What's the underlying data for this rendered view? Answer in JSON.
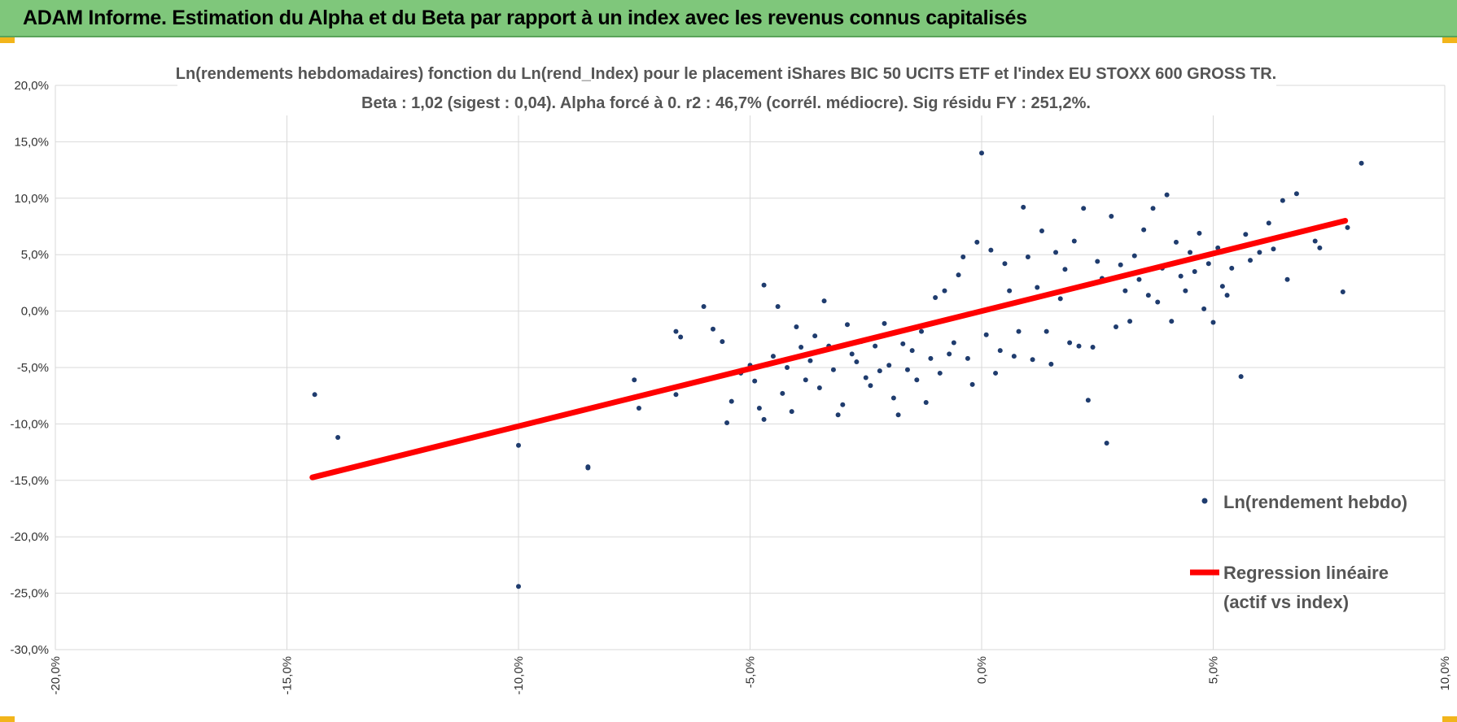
{
  "banner": {
    "title": "ADAM Informe. Estimation du Alpha et du Beta par rapport à un index avec les revenus connus capitalisés",
    "background": "#7fc77b",
    "accent": "#f2b51b"
  },
  "chart_data": {
    "type": "scatter",
    "title_line1": "Ln(rendements hebdomadaires) fonction du Ln(rend_Index) pour le placement iShares BIC 50 UCITS ETF  et l'index EU STOXX 600 GROSS TR.",
    "title_line2": "Beta : 1,02 (sigest : 0,04). Alpha forcé à 0. r2 : 46,7% (corrél. médiocre). Sig résidu FY : 251,2%.",
    "xlim": [
      -0.2,
      0.1
    ],
    "ylim": [
      -0.3,
      0.2
    ],
    "x_ticks": [
      -0.2,
      -0.15,
      -0.1,
      -0.05,
      0.0,
      0.05,
      0.1
    ],
    "x_tick_labels": [
      "-20,0%",
      "-15,0%",
      "-10,0%",
      "-5,0%",
      "0,0%",
      "5,0%",
      "10,0%"
    ],
    "y_ticks": [
      0.2,
      0.15,
      0.1,
      0.05,
      0.0,
      -0.05,
      -0.1,
      -0.15,
      -0.2,
      -0.25,
      -0.3
    ],
    "y_tick_labels": [
      "20,0%",
      "15,0%",
      "10,0%",
      "5,0%",
      "0,0%",
      "-5,0%",
      "-10,0%",
      "-15,0%",
      "-20,0%",
      "-25,0%",
      "-30,0%"
    ],
    "grid": true,
    "legend_position": "right",
    "series": [
      {
        "name": "Ln(rendement hebdo)",
        "kind": "scatter",
        "color": "#1f3c6e",
        "points": [
          [
            -0.144,
            -0.074
          ],
          [
            -0.139,
            -0.112
          ],
          [
            -0.1,
            -0.119
          ],
          [
            -0.1,
            -0.244
          ],
          [
            -0.085,
            -0.138
          ],
          [
            -0.085,
            -0.139
          ],
          [
            -0.075,
            -0.061
          ],
          [
            -0.074,
            -0.086
          ],
          [
            -0.066,
            -0.074
          ],
          [
            -0.066,
            -0.018
          ],
          [
            -0.065,
            -0.023
          ],
          [
            -0.06,
            0.004
          ],
          [
            -0.058,
            -0.016
          ],
          [
            -0.056,
            -0.027
          ],
          [
            -0.055,
            -0.099
          ],
          [
            -0.054,
            -0.08
          ],
          [
            -0.052,
            -0.055
          ],
          [
            -0.05,
            -0.048
          ],
          [
            -0.049,
            -0.062
          ],
          [
            -0.048,
            -0.086
          ],
          [
            -0.047,
            -0.096
          ],
          [
            -0.047,
            0.023
          ],
          [
            -0.045,
            -0.04
          ],
          [
            -0.044,
            0.004
          ],
          [
            -0.043,
            -0.073
          ],
          [
            -0.042,
            -0.05
          ],
          [
            -0.041,
            -0.089
          ],
          [
            -0.04,
            -0.014
          ],
          [
            -0.039,
            -0.032
          ],
          [
            -0.038,
            -0.061
          ],
          [
            -0.037,
            -0.044
          ],
          [
            -0.036,
            -0.022
          ],
          [
            -0.035,
            -0.068
          ],
          [
            -0.034,
            0.009
          ],
          [
            -0.033,
            -0.031
          ],
          [
            -0.032,
            -0.052
          ],
          [
            -0.031,
            -0.092
          ],
          [
            -0.03,
            -0.083
          ],
          [
            -0.029,
            -0.012
          ],
          [
            -0.028,
            -0.038
          ],
          [
            -0.027,
            -0.045
          ],
          [
            -0.026,
            -0.027
          ],
          [
            -0.025,
            -0.059
          ],
          [
            -0.024,
            -0.066
          ],
          [
            -0.023,
            -0.031
          ],
          [
            -0.022,
            -0.053
          ],
          [
            -0.021,
            -0.011
          ],
          [
            -0.02,
            -0.048
          ],
          [
            -0.019,
            -0.077
          ],
          [
            -0.018,
            -0.092
          ],
          [
            -0.017,
            -0.029
          ],
          [
            -0.016,
            -0.052
          ],
          [
            -0.015,
            -0.035
          ],
          [
            -0.014,
            -0.061
          ],
          [
            -0.013,
            -0.018
          ],
          [
            -0.012,
            -0.081
          ],
          [
            -0.011,
            -0.042
          ],
          [
            -0.01,
            0.012
          ],
          [
            -0.009,
            -0.055
          ],
          [
            -0.008,
            0.018
          ],
          [
            -0.007,
            -0.038
          ],
          [
            -0.006,
            -0.028
          ],
          [
            -0.005,
            0.032
          ],
          [
            -0.004,
            0.048
          ],
          [
            -0.003,
            -0.042
          ],
          [
            -0.002,
            -0.065
          ],
          [
            -0.001,
            0.061
          ],
          [
            0.0,
            0.14
          ],
          [
            0.001,
            -0.021
          ],
          [
            0.002,
            0.054
          ],
          [
            0.003,
            -0.055
          ],
          [
            0.004,
            -0.035
          ],
          [
            0.005,
            0.042
          ],
          [
            0.006,
            0.018
          ],
          [
            0.007,
            -0.04
          ],
          [
            0.008,
            -0.018
          ],
          [
            0.009,
            0.092
          ],
          [
            0.01,
            0.048
          ],
          [
            0.011,
            -0.043
          ],
          [
            0.012,
            0.021
          ],
          [
            0.013,
            0.071
          ],
          [
            0.014,
            -0.018
          ],
          [
            0.015,
            -0.047
          ],
          [
            0.016,
            0.052
          ],
          [
            0.017,
            0.011
          ],
          [
            0.018,
            0.037
          ],
          [
            0.019,
            -0.028
          ],
          [
            0.02,
            0.062
          ],
          [
            0.021,
            -0.031
          ],
          [
            0.022,
            0.091
          ],
          [
            0.023,
            -0.079
          ],
          [
            0.024,
            -0.032
          ],
          [
            0.025,
            0.044
          ],
          [
            0.026,
            0.029
          ],
          [
            0.027,
            -0.117
          ],
          [
            0.028,
            0.084
          ],
          [
            0.029,
            -0.014
          ],
          [
            0.03,
            0.041
          ],
          [
            0.031,
            0.018
          ],
          [
            0.032,
            -0.009
          ],
          [
            0.033,
            0.049
          ],
          [
            0.034,
            0.028
          ],
          [
            0.035,
            0.072
          ],
          [
            0.036,
            0.014
          ],
          [
            0.037,
            0.091
          ],
          [
            0.038,
            0.008
          ],
          [
            0.039,
            0.038
          ],
          [
            0.04,
            0.103
          ],
          [
            0.041,
            -0.009
          ],
          [
            0.042,
            0.061
          ],
          [
            0.043,
            0.031
          ],
          [
            0.044,
            0.018
          ],
          [
            0.045,
            0.052
          ],
          [
            0.046,
            0.035
          ],
          [
            0.047,
            0.069
          ],
          [
            0.048,
            0.002
          ],
          [
            0.049,
            0.042
          ],
          [
            0.05,
            -0.01
          ],
          [
            0.051,
            0.056
          ],
          [
            0.052,
            0.022
          ],
          [
            0.053,
            0.014
          ],
          [
            0.054,
            0.038
          ],
          [
            0.056,
            -0.058
          ],
          [
            0.057,
            0.068
          ],
          [
            0.058,
            0.045
          ],
          [
            0.06,
            0.052
          ],
          [
            0.062,
            0.078
          ],
          [
            0.063,
            0.055
          ],
          [
            0.065,
            0.098
          ],
          [
            0.066,
            0.028
          ],
          [
            0.068,
            0.104
          ],
          [
            0.072,
            0.062
          ],
          [
            0.073,
            0.056
          ],
          [
            0.078,
            0.017
          ],
          [
            0.079,
            0.074
          ],
          [
            0.082,
            0.131
          ]
        ]
      },
      {
        "name": "Regression linéaire (actif vs index)",
        "kind": "line",
        "color": "#ff0000",
        "legend_lines": [
          "Regression linéaire",
          "(actif vs index)"
        ],
        "slope": 1.02,
        "x_range": [
          -0.1445,
          0.0785
        ]
      }
    ]
  }
}
